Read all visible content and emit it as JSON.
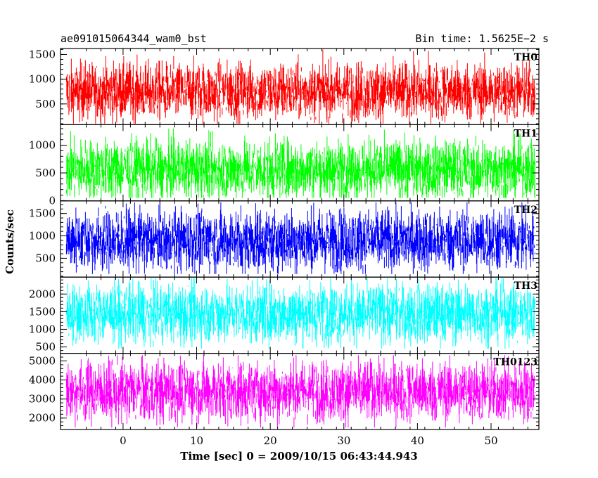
{
  "header": {
    "left_title": "ae091015064344_wam0_bst",
    "right_title": "Bin time: 1.5625E−2 s"
  },
  "chart_data": {
    "type": "line",
    "xlabel": "Time [sec] 0 = 2009/10/15 06:43:44.943",
    "ylabel": "Counts/sec",
    "xlim": [
      -8.5,
      56.5
    ],
    "data_x_range": [
      -7.7,
      56.0
    ],
    "xticks": [
      0,
      10,
      20,
      30,
      40,
      50
    ],
    "grid": false,
    "panels": [
      {
        "name": "TH0",
        "color": "#ff0000",
        "ylim": [
          80,
          1620
        ],
        "yticks": [
          500,
          1000,
          1500
        ],
        "mean": 750,
        "band_low": 330,
        "band_high": 1230,
        "min": 100,
        "max": 1600
      },
      {
        "name": "TH1",
        "color": "#00ff00",
        "ylim": [
          -5,
          1370
        ],
        "yticks": [
          0,
          500,
          1000
        ],
        "mean": 560,
        "band_low": 180,
        "band_high": 1000,
        "min": 50,
        "max": 1300
      },
      {
        "name": "TH2",
        "color": "#0000ff",
        "ylim": [
          80,
          1780
        ],
        "yticks": [
          500,
          1000,
          1500
        ],
        "mean": 900,
        "band_low": 380,
        "band_high": 1450,
        "min": 150,
        "max": 1750
      },
      {
        "name": "TH3",
        "color": "#00ffff",
        "ylim": [
          320,
          2480
        ],
        "yticks": [
          500,
          1000,
          1500,
          2000
        ],
        "mean": 1450,
        "band_low": 850,
        "band_high": 2150,
        "min": 450,
        "max": 2450
      },
      {
        "name": "TH0123",
        "color": "#ff00ff",
        "ylim": [
          1400,
          5400
        ],
        "yticks": [
          2000,
          3000,
          4000,
          5000
        ],
        "mean": 3400,
        "band_low": 2300,
        "band_high": 4750,
        "min": 1500,
        "max": 5300
      }
    ]
  }
}
